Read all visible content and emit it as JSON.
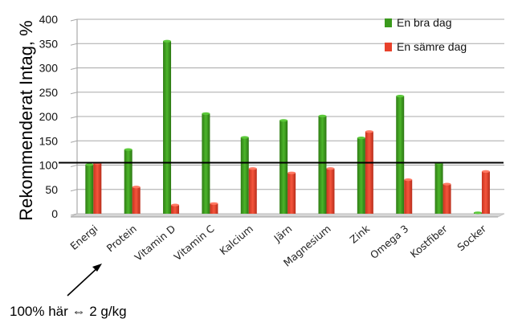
{
  "chart_data": {
    "type": "bar",
    "ylabel": "Rekommenderat Intag, %",
    "ylim": [
      0,
      400
    ],
    "yticks": [
      "0",
      "50",
      "100",
      "150",
      "200",
      "250",
      "300",
      "350",
      "400"
    ],
    "categories": [
      "Energi",
      "Protein",
      "Vitamin D",
      "Vitamin C",
      "Kalcium",
      "Järn",
      "Magnesium",
      "Zink",
      "Omega 3",
      "Kostfiber",
      "Socker"
    ],
    "series": [
      {
        "name": "En bra dag",
        "color": "#3a9a1c",
        "values": [
          101,
          132,
          355,
          206,
          157,
          192,
          201,
          156,
          242,
          104,
          2
        ]
      },
      {
        "name": "En sämre dag",
        "color": "#e8412b",
        "values": [
          104,
          55,
          18,
          21,
          93,
          84,
          93,
          169,
          70,
          61,
          87
        ]
      }
    ],
    "reference_line": 105,
    "legend_position": "top-right",
    "grid": true,
    "annotation": "100% här ⇔ 2 g/kg"
  }
}
